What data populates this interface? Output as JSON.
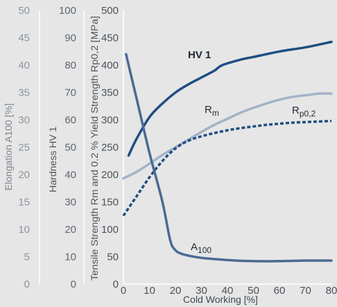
{
  "chart_data": {
    "type": "line",
    "grid": false,
    "x_axis": {
      "label": "Cold Working [%]",
      "range": [
        0,
        80
      ],
      "ticks": [
        "0",
        "10",
        "20",
        "30",
        "40",
        "50",
        "60",
        "70",
        "80"
      ]
    },
    "y_axes": [
      {
        "id": "elongation",
        "label": "Elongation A100 [%]",
        "range": [
          0,
          50
        ],
        "ticks": [
          "0",
          "5",
          "10",
          "15",
          "20",
          "25",
          "30",
          "35",
          "40",
          "45",
          "50"
        ],
        "color": "#8b95a0"
      },
      {
        "id": "hardness",
        "label": "Hardness HV 1",
        "range": [
          0,
          100
        ],
        "ticks": [
          "0",
          "10",
          "20",
          "30",
          "40",
          "50",
          "60",
          "70",
          "80",
          "90",
          "100"
        ],
        "color": "#5d6670"
      },
      {
        "id": "strength",
        "label": "Tensile Strength Rm and 0.2 % Yield Strength Rp0,2 [MPa]",
        "range": [
          0,
          500
        ],
        "ticks": [
          "0",
          "50",
          "100",
          "150",
          "200",
          "250",
          "300",
          "350",
          "400",
          "450",
          "500"
        ],
        "color": "#4a525a"
      }
    ],
    "series": [
      {
        "name": "HV 1",
        "axis": "hardness",
        "color": "#1f4e82",
        "style": "solid",
        "x": [
          2,
          5,
          10,
          15,
          20,
          25,
          30,
          35,
          38,
          45,
          50,
          60,
          70,
          80
        ],
        "y": [
          47,
          53,
          61,
          66,
          70,
          73,
          75.5,
          78,
          80,
          82,
          83,
          85,
          86.5,
          88.5
        ]
      },
      {
        "name": "Rm",
        "axis": "strength",
        "color": "#a3b3c7",
        "style": "solid",
        "x": [
          0,
          5,
          10,
          15,
          20,
          25,
          30,
          35,
          40,
          45,
          50,
          55,
          60,
          65,
          70,
          75,
          80
        ],
        "y": [
          193,
          205,
          220,
          236,
          250,
          264,
          278,
          291,
          302,
          313,
          322,
          330,
          337,
          342,
          345,
          348,
          348
        ]
      },
      {
        "name": "Rp0,2",
        "axis": "strength",
        "color": "#1f4e82",
        "style": "dotted",
        "x": [
          0,
          5,
          10,
          15,
          20,
          25,
          30,
          35,
          40,
          45,
          50,
          55,
          60,
          65,
          70,
          75,
          80
        ],
        "y": [
          125,
          160,
          195,
          225,
          248,
          262,
          270,
          276,
          281,
          285,
          288,
          291,
          293,
          295,
          296,
          297,
          298
        ]
      },
      {
        "name": "A100",
        "axis": "elongation",
        "color": "#4b6a92",
        "style": "solid",
        "x": [
          1,
          5,
          10,
          15,
          18,
          20,
          22,
          25,
          30,
          40,
          50,
          60,
          70,
          80
        ],
        "y": [
          42,
          34,
          24,
          15,
          8,
          6.2,
          5.6,
          5.2,
          4.8,
          4.4,
          4.2,
          4.2,
          4.3,
          4.3
        ]
      }
    ],
    "annotations": [
      {
        "series": "HV 1",
        "text": "HV 1"
      },
      {
        "series": "Rm",
        "text": "R",
        "sub": "m"
      },
      {
        "series": "Rp0,2",
        "text": "R",
        "sub": "p0,2"
      },
      {
        "series": "A100",
        "text": "A",
        "sub": "100"
      }
    ]
  }
}
